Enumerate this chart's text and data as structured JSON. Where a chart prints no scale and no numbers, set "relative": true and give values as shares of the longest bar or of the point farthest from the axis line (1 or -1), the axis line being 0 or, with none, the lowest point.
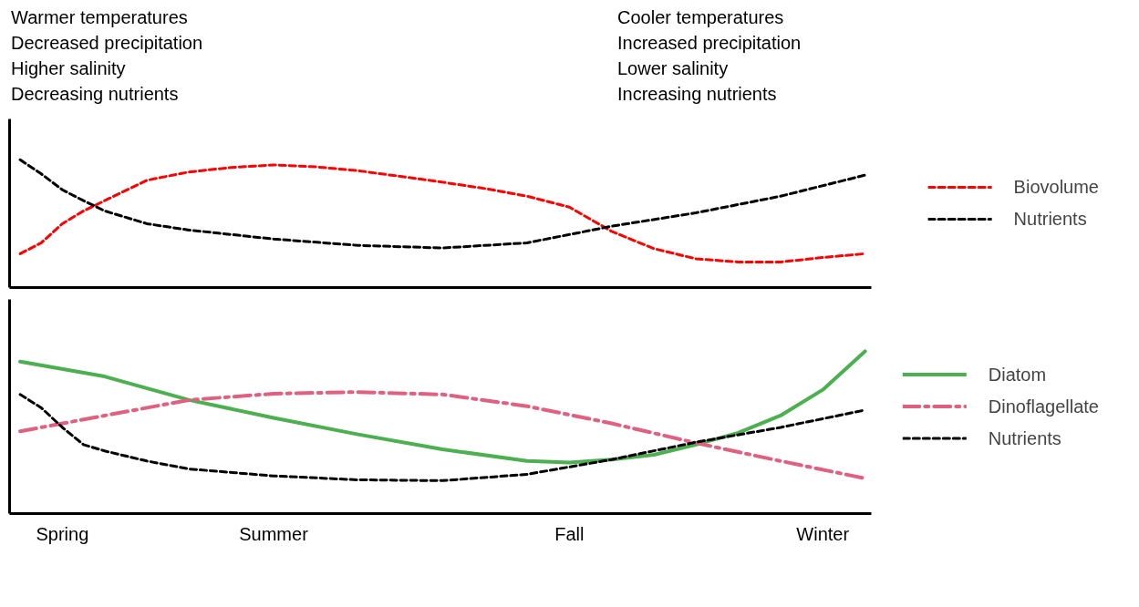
{
  "chart_data": [
    {
      "type": "line",
      "relative": true,
      "grid": false,
      "legend": "right",
      "categories": [
        null,
        null,
        null,
        null,
        null,
        null,
        null,
        null,
        null,
        null,
        null,
        null,
        null,
        null,
        null,
        null,
        null,
        null,
        null,
        null,
        null,
        null,
        null,
        null,
        null,
        null,
        null,
        null,
        null,
        null,
        null,
        null,
        null,
        null,
        null,
        null,
        null,
        null,
        null,
        null,
        null
      ],
      "annotations": [
        "Warmer temperatures",
        "Decreased precipitation",
        "Higher salinity",
        "Decreasing nutrients",
        "Cooler temperatures",
        "Increased precipitation",
        "Lower salinity",
        "Increasing nutrients"
      ],
      "series": [
        {
          "name": "Biovolume",
          "color": "#ff0000",
          "line_style": "dashed",
          "values": [
            0.265,
            0.35,
            0.5,
            0.6,
            0.68,
            null,
            0.84,
            null,
            0.905,
            null,
            0.94,
            null,
            0.96,
            null,
            0.945,
            null,
            0.915,
            null,
            0.87,
            null,
            0.825,
            null,
            0.775,
            null,
            0.715,
            null,
            0.63,
            null,
            0.44,
            null,
            0.305,
            null,
            0.225,
            null,
            0.2,
            null,
            0.2,
            null,
            0.235,
            null,
            0.265
          ]
        },
        {
          "name": "Nutrients",
          "color": "#000000",
          "line_style": "dashed",
          "values": [
            1.0,
            0.89,
            0.765,
            0.68,
            0.6,
            null,
            0.5,
            null,
            0.45,
            null,
            0.415,
            null,
            0.38,
            null,
            null,
            null,
            0.33,
            null,
            null,
            null,
            0.31,
            null,
            null,
            null,
            0.35,
            null,
            null,
            null,
            0.48,
            null,
            null,
            null,
            0.585,
            null,
            null,
            null,
            0.715,
            null,
            null,
            null,
            0.88
          ]
        }
      ]
    },
    {
      "type": "line",
      "relative": true,
      "grid": false,
      "legend": "right",
      "categories": [
        null,
        null,
        "Spring",
        null,
        null,
        null,
        null,
        null,
        null,
        null,
        null,
        null,
        "Summer",
        null,
        null,
        null,
        null,
        null,
        null,
        null,
        null,
        null,
        null,
        null,
        null,
        null,
        "Fall",
        null,
        null,
        null,
        null,
        null,
        null,
        null,
        null,
        null,
        null,
        null,
        "Winter",
        null,
        null
      ],
      "series": [
        {
          "name": "Diatom",
          "color": "#4caf50",
          "line_style": "solid",
          "values": [
            0.937,
            null,
            null,
            null,
            0.845,
            null,
            null,
            null,
            0.7,
            null,
            null,
            null,
            0.59,
            null,
            null,
            null,
            0.488,
            null,
            null,
            null,
            0.396,
            null,
            null,
            null,
            0.324,
            null,
            0.314,
            null,
            0.333,
            null,
            0.362,
            null,
            0.425,
            null,
            0.498,
            null,
            0.604,
            null,
            0.763,
            null,
            1.0
          ]
        },
        {
          "name": "Dinoflagellate",
          "color": "#e06080",
          "line_style": "dashdot",
          "values": [
            0.507,
            null,
            null,
            null,
            0.604,
            null,
            null,
            null,
            0.7,
            null,
            null,
            null,
            0.739,
            null,
            null,
            null,
            0.749,
            null,
            null,
            null,
            0.734,
            null,
            null,
            null,
            0.662,
            null,
            null,
            null,
            0.556,
            null,
            null,
            null,
            0.435,
            null,
            null,
            null,
            0.324,
            null,
            null,
            null,
            0.217
          ]
        },
        {
          "name": "Nutrients",
          "color": "#000000",
          "line_style": "dashed",
          "values": [
            0.734,
            0.652,
            0.531,
            0.425,
            0.386,
            null,
            0.324,
            null,
            0.275,
            null,
            null,
            null,
            0.232,
            null,
            null,
            null,
            0.208,
            null,
            null,
            null,
            0.203,
            null,
            null,
            null,
            0.242,
            null,
            null,
            null,
            0.333,
            null,
            null,
            null,
            0.44,
            null,
            null,
            null,
            0.531,
            null,
            null,
            null,
            0.638
          ]
        }
      ]
    }
  ]
}
